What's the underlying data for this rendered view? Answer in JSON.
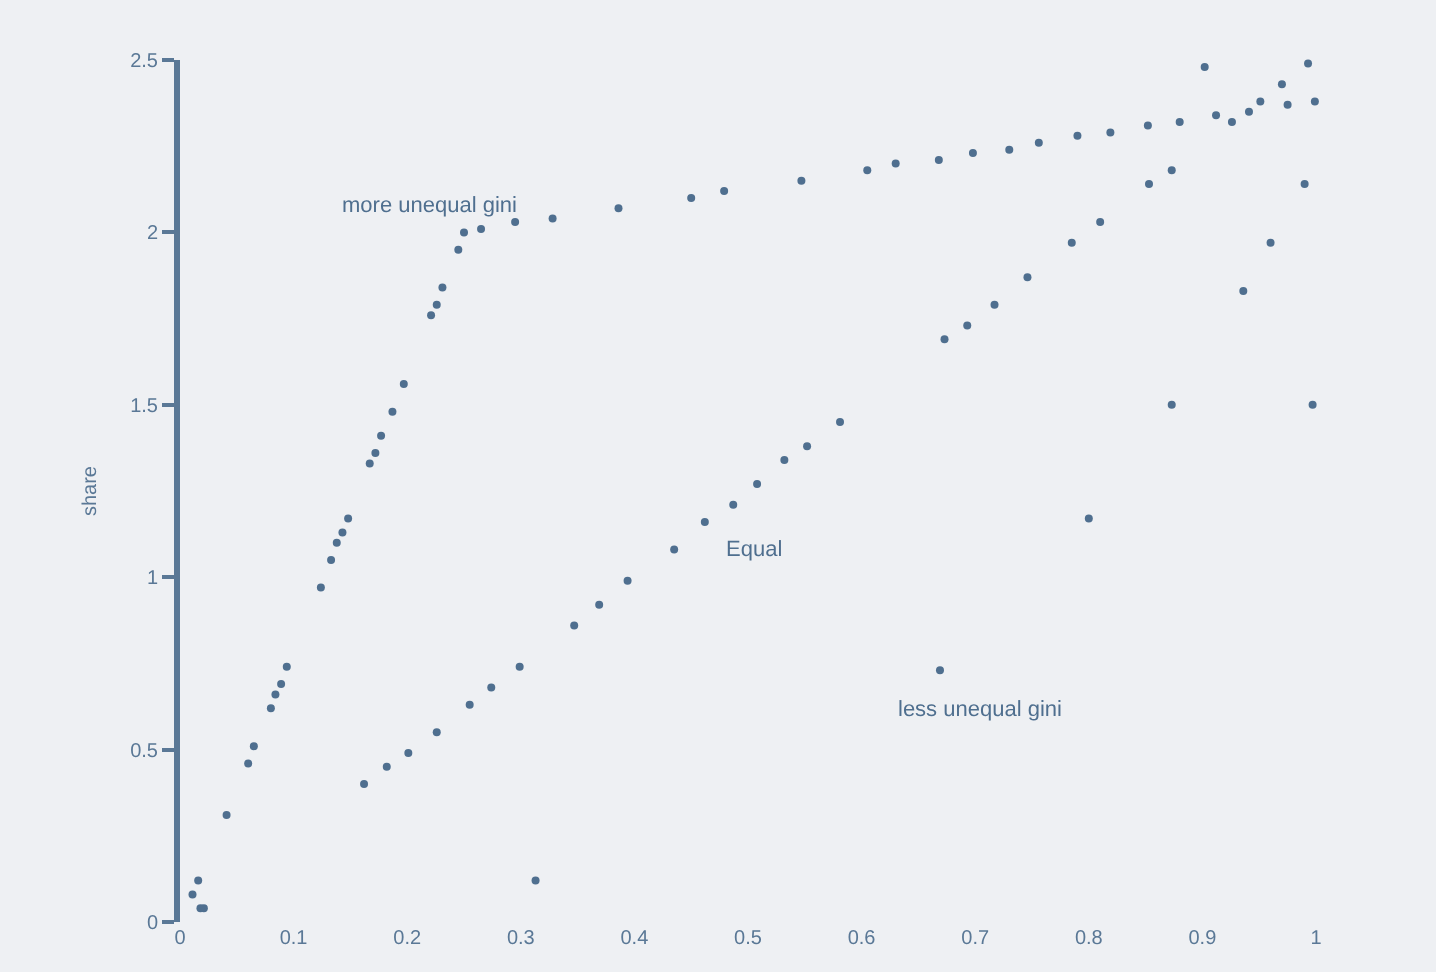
{
  "chart_data": {
    "type": "scatter",
    "ylabel": "share",
    "marker": "circle",
    "xlim": [
      0,
      1
    ],
    "ylim": [
      0,
      2.5
    ],
    "xticks": [
      0,
      0.1,
      0.2,
      0.3,
      0.4,
      0.5,
      0.6,
      0.7,
      0.8,
      0.9,
      1
    ],
    "yticks": [
      0,
      0.5,
      1,
      1.5,
      2,
      2.5
    ],
    "grid": false,
    "legend": false,
    "series": [
      {
        "name": "more unequal gini",
        "color": "#4f6f8f",
        "x": [
          0.016,
          0.011,
          0.021,
          0.041,
          0.06,
          0.065,
          0.08,
          0.084,
          0.089,
          0.094,
          0.124,
          0.133,
          0.138,
          0.143,
          0.148,
          0.167,
          0.172,
          0.177,
          0.187,
          0.197,
          0.221,
          0.226,
          0.231,
          0.245,
          0.25,
          0.265,
          0.295,
          0.328,
          0.386,
          0.45,
          0.479,
          0.547,
          0.605,
          0.63,
          0.668,
          0.698,
          0.73,
          0.756,
          0.79,
          0.819,
          0.852,
          0.88,
          0.912,
          0.926,
          0.975,
          0.999
        ],
        "values": [
          0.12,
          0.08,
          0.04,
          0.31,
          0.46,
          0.51,
          0.62,
          0.66,
          0.69,
          0.74,
          0.97,
          1.05,
          1.1,
          1.13,
          1.17,
          1.33,
          1.36,
          1.41,
          1.48,
          1.56,
          1.76,
          1.79,
          1.84,
          1.95,
          2.0,
          2.01,
          2.03,
          2.04,
          2.07,
          2.1,
          2.12,
          2.15,
          2.18,
          2.2,
          2.21,
          2.23,
          2.24,
          2.26,
          2.28,
          2.29,
          2.31,
          2.32,
          2.34,
          2.32,
          2.37,
          2.38
        ]
      },
      {
        "name": "Equal",
        "color": "#4f6f8f",
        "x": [
          0.018,
          0.162,
          0.182,
          0.201,
          0.226,
          0.255,
          0.274,
          0.299,
          0.347,
          0.369,
          0.394,
          0.435,
          0.462,
          0.487,
          0.508,
          0.532,
          0.552,
          0.581,
          0.673,
          0.693,
          0.717,
          0.746,
          0.785,
          0.81,
          0.853,
          0.873,
          0.941,
          0.951,
          0.97,
          0.993
        ],
        "values": [
          0.04,
          0.4,
          0.45,
          0.49,
          0.55,
          0.63,
          0.68,
          0.74,
          0.86,
          0.92,
          0.99,
          1.08,
          1.16,
          1.21,
          1.27,
          1.34,
          1.38,
          1.45,
          1.69,
          1.73,
          1.79,
          1.87,
          1.97,
          2.03,
          2.14,
          2.18,
          2.35,
          2.38,
          2.43,
          2.49
        ]
      },
      {
        "name": "less unequal gini",
        "color": "#4f6f8f",
        "x": [
          0.313,
          0.669,
          0.8,
          0.873,
          0.936,
          0.96,
          0.99,
          0.997,
          0.902
        ],
        "values": [
          0.12,
          0.73,
          1.17,
          1.5,
          1.83,
          1.97,
          2.14,
          1.5,
          2.48
        ]
      }
    ]
  }
}
